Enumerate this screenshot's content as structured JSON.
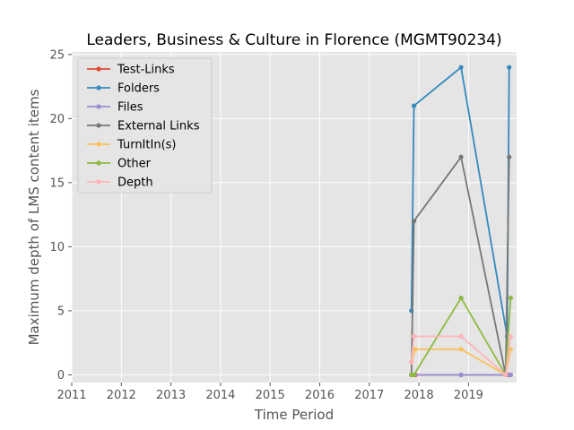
{
  "chart_data": {
    "type": "line",
    "title": "Leaders, Business & Culture in Florence (MGMT90234)",
    "xlabel": "Time Period",
    "ylabel": "Maximum depth of LMS content items",
    "xlim": [
      2011.0,
      2019.97
    ],
    "ylim": [
      -0.6,
      25.2
    ],
    "x_ticks": [
      2011,
      2012,
      2013,
      2014,
      2015,
      2016,
      2017,
      2018,
      2019
    ],
    "y_ticks": [
      0,
      5,
      10,
      15,
      20,
      25
    ],
    "grid": true,
    "legend_position": "top-left",
    "series": [
      {
        "name": "Test-Links",
        "color": "#E24A33",
        "points": [
          [
            2017.85,
            0
          ],
          [
            2017.9,
            0
          ],
          [
            2017.93,
            0
          ],
          [
            2018.85,
            0
          ],
          [
            2019.75,
            0
          ],
          [
            2019.82,
            0
          ],
          [
            2019.85,
            0
          ]
        ]
      },
      {
        "name": "Folders",
        "color": "#348ABD",
        "points": [
          [
            2017.85,
            5
          ],
          [
            2017.9,
            21
          ],
          [
            2018.85,
            24
          ],
          [
            2019.78,
            3
          ],
          [
            2019.82,
            24
          ]
        ]
      },
      {
        "name": "Files",
        "color": "#988ED5",
        "points": [
          [
            2017.85,
            0
          ],
          [
            2017.9,
            0
          ],
          [
            2018.85,
            0
          ],
          [
            2019.78,
            0
          ],
          [
            2019.85,
            0
          ]
        ]
      },
      {
        "name": "External Links",
        "color": "#777777",
        "points": [
          [
            2017.85,
            0
          ],
          [
            2017.9,
            12
          ],
          [
            2018.85,
            17
          ],
          [
            2019.75,
            0
          ],
          [
            2019.82,
            17
          ]
        ]
      },
      {
        "name": "TurnItIn(s)",
        "color": "#FBC15E",
        "points": [
          [
            2017.85,
            1
          ],
          [
            2017.93,
            2
          ],
          [
            2018.85,
            2
          ],
          [
            2019.75,
            0
          ],
          [
            2019.85,
            2
          ]
        ]
      },
      {
        "name": "Other",
        "color": "#8EBA42",
        "points": [
          [
            2017.85,
            0
          ],
          [
            2017.9,
            0
          ],
          [
            2018.85,
            6
          ],
          [
            2019.75,
            0
          ],
          [
            2019.85,
            6
          ]
        ]
      },
      {
        "name": "Depth",
        "color": "#FFB5B8",
        "points": [
          [
            2017.85,
            1
          ],
          [
            2017.9,
            3
          ],
          [
            2018.85,
            3
          ],
          [
            2019.75,
            0
          ],
          [
            2019.85,
            3
          ]
        ]
      }
    ]
  }
}
